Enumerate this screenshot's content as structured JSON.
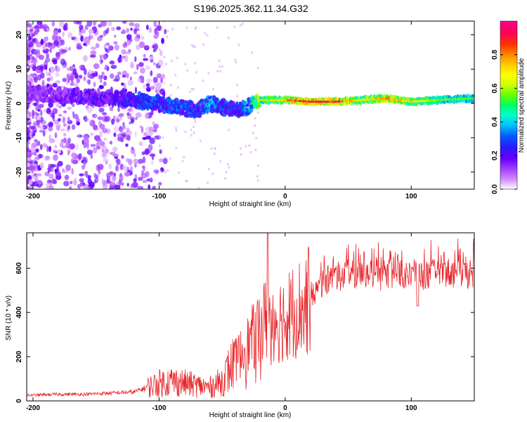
{
  "title": "S196.2025.362.11.34.G32",
  "chart_data": [
    {
      "type": "heatmap",
      "xlabel": "Height of straight line (km)",
      "ylabel": "Frequency (Hz)",
      "xlim": [
        -205,
        150
      ],
      "ylim": [
        -25,
        24
      ],
      "xticks": [
        -200,
        -100,
        0,
        100
      ],
      "yticks": [
        -20,
        -10,
        0,
        10,
        20
      ],
      "colorbar": {
        "label": "Normalized spectral amplitude",
        "range": [
          0.0,
          1.0
        ],
        "ticks": [
          0.0,
          0.2,
          0.4,
          0.6,
          0.8
        ],
        "colors": [
          "#ffffff",
          "#d08aff",
          "#a040ff",
          "#6a00ff",
          "#2a1aff",
          "#0060ff",
          "#00c0ff",
          "#00ffcc",
          "#00ff66",
          "#66ff00",
          "#ccff00",
          "#ffff00",
          "#ffcc00",
          "#ff8800",
          "#ff3300",
          "#ff0055",
          "#ff0088"
        ]
      },
      "ridge": {
        "x": [
          -205,
          -180,
          -160,
          -140,
          -120,
          -100,
          -85,
          -70,
          -60,
          -50,
          -40,
          -30,
          -20,
          -10,
          0,
          20,
          40,
          60,
          80,
          100,
          120,
          150
        ],
        "freq": [
          3,
          2.5,
          2,
          1.5,
          1,
          0,
          -1,
          -2,
          0,
          -1,
          -2,
          -1,
          1,
          1,
          1,
          0.5,
          0.5,
          1,
          1.5,
          0.5,
          1,
          1.5
        ],
        "amplitude": [
          0.15,
          0.15,
          0.2,
          0.2,
          0.25,
          0.3,
          0.3,
          0.25,
          0.35,
          0.3,
          0.25,
          0.35,
          0.6,
          0.7,
          0.8,
          1.0,
          0.95,
          0.7,
          0.85,
          0.75,
          0.6,
          0.55
        ]
      }
    },
    {
      "type": "line",
      "xlabel": "Height of straight line (km)",
      "ylabel": "SNR (10 * v/v)",
      "xlim": [
        -205,
        150
      ],
      "ylim": [
        0,
        760
      ],
      "xticks": [
        -200,
        -100,
        0,
        100
      ],
      "yticks": [
        0,
        200,
        400,
        600
      ],
      "color": "#e8262a",
      "x": [
        -205,
        -180,
        -160,
        -140,
        -120,
        -110,
        -100,
        -90,
        -80,
        -70,
        -60,
        -50,
        -40,
        -30,
        -25,
        -20,
        -15,
        -10,
        -5,
        0,
        5,
        10,
        15,
        20,
        25,
        30,
        40,
        50,
        60,
        70,
        80,
        90,
        100,
        110,
        120,
        130,
        140,
        150
      ],
      "values": [
        25,
        30,
        30,
        35,
        40,
        60,
        80,
        90,
        80,
        70,
        60,
        90,
        180,
        250,
        290,
        330,
        370,
        380,
        370,
        380,
        400,
        420,
        430,
        460,
        500,
        540,
        560,
        570,
        560,
        560,
        570,
        580,
        560,
        570,
        575,
        580,
        575,
        580
      ]
    }
  ]
}
